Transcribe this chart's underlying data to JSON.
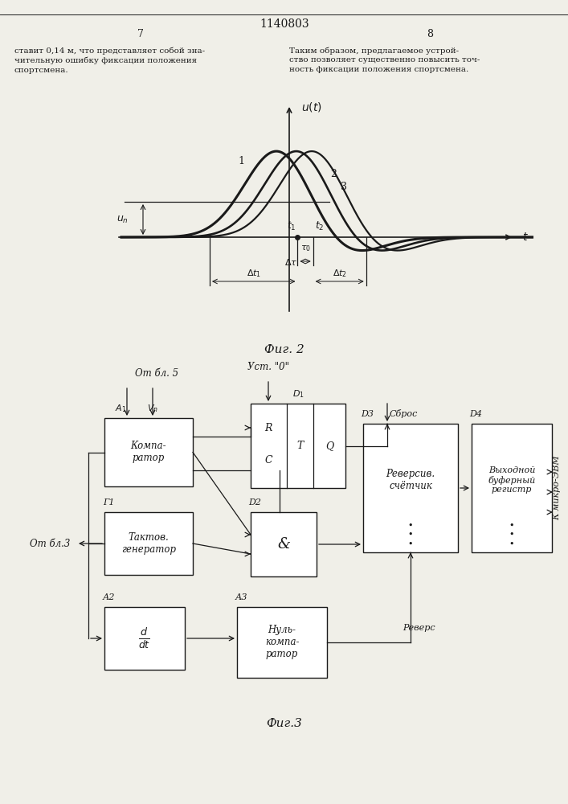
{
  "title": "1140803",
  "page_left": "7",
  "page_right": "8",
  "text_left": "ставит 0,14 м, что представляет собой зна-\nчительную ошибку фиксации положения\nспортсмена.",
  "text_right": "Таким образом, предлагаемое устрой-\nство позволяет существенно повысить точ-\nность фиксации положения спортсмена.",
  "fig2_caption": "Фиг. 2",
  "fig3_caption": "Фиг.3",
  "bg_color": "#f0efe8",
  "line_color": "#1a1a1a"
}
